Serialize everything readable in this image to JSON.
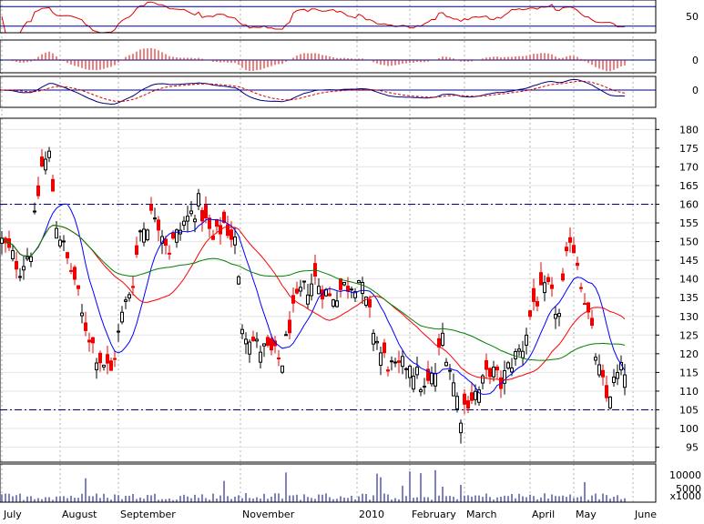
{
  "chart_data": {
    "type": "candlestick",
    "colors": {
      "up": "#000000",
      "down": "#ee0000",
      "ma_short": "#0000ff",
      "ma_mid": "#ff0000",
      "ma_long": "#008000",
      "rsi": "#dd0000",
      "panel_line": "#000080",
      "grid": "#b0b0b0"
    },
    "x_labels": [
      "July",
      "August",
      "September",
      "November",
      "2010",
      "February",
      "March",
      "April",
      "May",
      "June"
    ],
    "price_axis": {
      "ticks": [
        95,
        100,
        105,
        110,
        115,
        120,
        125,
        130,
        135,
        140,
        145,
        150,
        155,
        160,
        165,
        170,
        175,
        180
      ],
      "ylim": [
        91,
        183
      ],
      "reference_levels": [
        160,
        105
      ]
    },
    "indicator_panels": [
      {
        "name": "rsi",
        "tick": "50",
        "ylim": [
          0,
          100
        ],
        "ref_lines": [
          80,
          20
        ]
      },
      {
        "name": "macd_histogram",
        "tick": "0",
        "ylim": [
          -10,
          10
        ]
      },
      {
        "name": "macd",
        "tick": "0",
        "ylim": [
          -15,
          15
        ]
      }
    ],
    "volume_axis": {
      "ticks": [
        10000,
        5000
      ],
      "ylim": [
        0,
        14000
      ],
      "unit_label": "x1000"
    },
    "price_keypoints": [
      [
        0,
        150
      ],
      [
        5,
        143
      ],
      [
        8,
        148
      ],
      [
        11,
        170
      ],
      [
        13,
        173
      ],
      [
        15,
        155
      ],
      [
        18,
        145
      ],
      [
        20,
        140
      ],
      [
        22,
        130
      ],
      [
        26,
        120
      ],
      [
        30,
        115
      ],
      [
        33,
        130
      ],
      [
        36,
        140
      ],
      [
        38,
        153
      ],
      [
        42,
        158
      ],
      [
        46,
        148
      ],
      [
        50,
        155
      ],
      [
        54,
        160
      ],
      [
        58,
        150
      ],
      [
        61,
        155
      ],
      [
        64,
        150
      ],
      [
        66,
        128
      ],
      [
        70,
        122
      ],
      [
        74,
        120
      ],
      [
        77,
        118
      ],
      [
        79,
        128
      ],
      [
        82,
        136
      ],
      [
        86,
        140
      ],
      [
        90,
        135
      ],
      [
        94,
        138
      ],
      [
        98,
        140
      ],
      [
        101,
        130
      ],
      [
        104,
        120
      ],
      [
        108,
        115
      ],
      [
        112,
        118
      ],
      [
        116,
        110
      ],
      [
        119,
        115
      ],
      [
        121,
        125
      ],
      [
        124,
        112
      ],
      [
        126,
        104
      ],
      [
        128,
        108
      ],
      [
        131,
        110
      ],
      [
        134,
        116
      ],
      [
        137,
        112
      ],
      [
        140,
        118
      ],
      [
        143,
        122
      ],
      [
        146,
        134
      ],
      [
        150,
        137
      ],
      [
        153,
        130
      ],
      [
        156,
        152
      ],
      [
        158,
        145
      ],
      [
        160,
        135
      ],
      [
        162,
        125
      ],
      [
        164,
        115
      ],
      [
        166,
        108
      ],
      [
        169,
        114
      ],
      [
        171,
        116
      ]
    ]
  }
}
